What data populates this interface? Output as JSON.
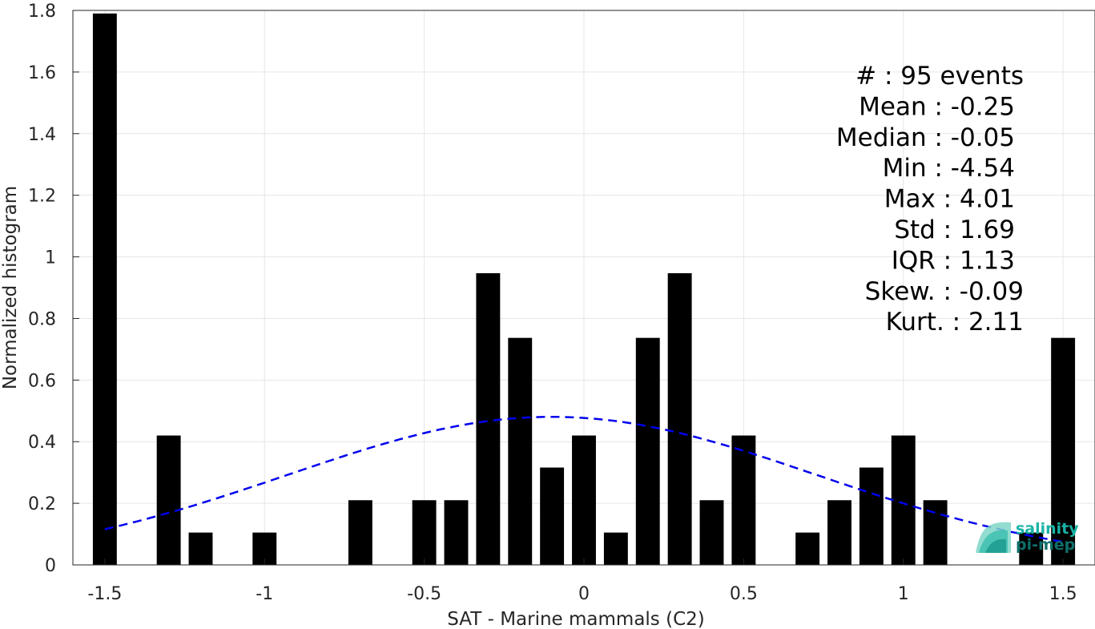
{
  "chart_data": {
    "type": "bar",
    "xlabel": "SAT - Marine mammals (C2)",
    "ylabel": "Normalized histogram",
    "xlim": [
      -1.6,
      1.6
    ],
    "ylim": [
      0,
      1.8
    ],
    "grid": true,
    "xticks": [
      -1.5,
      -1,
      -0.5,
      0,
      0.5,
      1,
      1.5
    ],
    "xtick_labels": [
      "-1.5",
      "-1",
      "-0.5",
      "0",
      "0.5",
      "1",
      "1.5"
    ],
    "yticks": [
      0,
      0.2,
      0.4,
      0.6,
      0.8,
      1,
      1.2,
      1.4,
      1.6,
      1.8
    ],
    "ytick_labels": [
      "0",
      "0.2",
      "0.4",
      "0.6",
      "0.8",
      "1",
      "1.2",
      "1.4",
      "1.6",
      "1.8"
    ],
    "bar_width": 0.075,
    "x": [
      -1.5,
      -1.3,
      -1.2,
      -1.0,
      -0.7,
      -0.5,
      -0.4,
      -0.3,
      -0.2,
      -0.1,
      0.0,
      0.1,
      0.2,
      0.3,
      0.4,
      0.5,
      0.7,
      0.8,
      0.9,
      1.0,
      1.1,
      1.4,
      1.5
    ],
    "values": [
      1.79,
      0.42,
      0.105,
      0.105,
      0.21,
      0.21,
      0.21,
      0.947,
      0.737,
      0.316,
      0.42,
      0.105,
      0.737,
      0.947,
      0.21,
      0.42,
      0.105,
      0.21,
      0.316,
      0.42,
      0.21,
      0.105,
      0.737
    ],
    "bar_color": "#000000",
    "fit_curve": {
      "style": "dashed",
      "color": "#0000ee",
      "mean": -0.1,
      "std": 0.83,
      "x_range": [
        -1.5,
        1.5
      ]
    },
    "stats": [
      "#  : 95 events",
      "Mean : -0.25",
      "Median : -0.05",
      "Min : -4.54",
      "Max : 4.01",
      "Std : 1.69",
      "IQR : 1.13",
      "Skew. : -0.09",
      "Kurt. : 2.11"
    ]
  },
  "logo": {
    "line1": "salinity",
    "line2": "pi-mep",
    "color1": "#19b3a6",
    "color2": "#0f6f6a"
  }
}
